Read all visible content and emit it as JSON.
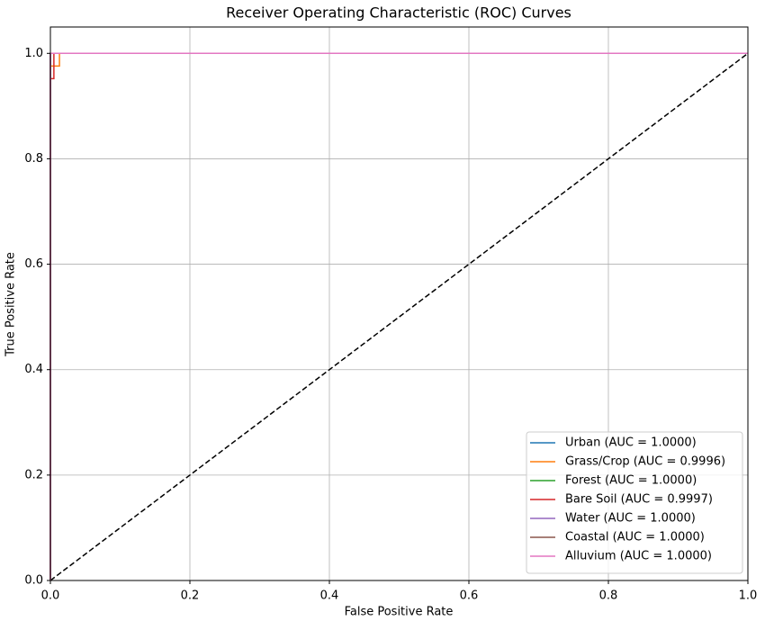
{
  "chart_data": {
    "type": "line",
    "title": "Receiver Operating Characteristic (ROC) Curves",
    "x_label": "False Positive Rate",
    "y_label": "True Positive Rate",
    "xlim": [
      0,
      1
    ],
    "ylim": [
      0,
      1.05
    ],
    "xticks": [
      {
        "value": 0,
        "label": "0.0"
      },
      0.2,
      0.4,
      0.6,
      0.8,
      {
        "value": 1,
        "label": "1.0"
      }
    ],
    "yticks": [
      {
        "value": 0,
        "label": "0.0"
      },
      0.2,
      0.4,
      0.6,
      0.8,
      {
        "value": 1,
        "label": "1.0"
      }
    ],
    "grid": true,
    "legend": "lower right",
    "series": [
      {
        "name": "Urban (AUC = 1.0000)",
        "color": "#1f77b4",
        "x": [
          0,
          0,
          1
        ],
        "values": [
          0,
          1,
          1
        ]
      },
      {
        "name": "Grass/Crop (AUC = 0.9996)",
        "color": "#ff7f0e",
        "x": [
          0,
          0,
          0.013,
          0.013,
          1
        ],
        "values": [
          0,
          0.976,
          0.976,
          1,
          1
        ]
      },
      {
        "name": "Forest (AUC = 1.0000)",
        "color": "#2ca02c",
        "x": [
          0,
          0,
          1
        ],
        "values": [
          0,
          1,
          1
        ]
      },
      {
        "name": "Bare Soil (AUC = 0.9997)",
        "color": "#d62728",
        "x": [
          0,
          0,
          0.005,
          0.005,
          1
        ],
        "values": [
          0,
          0.952,
          0.952,
          1,
          1
        ]
      },
      {
        "name": "Water (AUC = 1.0000)",
        "color": "#9467bd",
        "x": [
          0,
          0,
          1
        ],
        "values": [
          0,
          1,
          1
        ]
      },
      {
        "name": "Coastal (AUC = 1.0000)",
        "color": "#8c564b",
        "x": [
          0,
          0,
          1
        ],
        "values": [
          0,
          1,
          1
        ]
      },
      {
        "name": "Alluvium (AUC = 1.0000)",
        "color": "#e377c2",
        "x": [
          0,
          0,
          1
        ],
        "values": [
          0,
          1,
          1
        ]
      }
    ],
    "reference_line": {
      "color": "#000000",
      "style": "dashed",
      "x": [
        0,
        1
      ],
      "values": [
        0,
        1
      ]
    }
  }
}
